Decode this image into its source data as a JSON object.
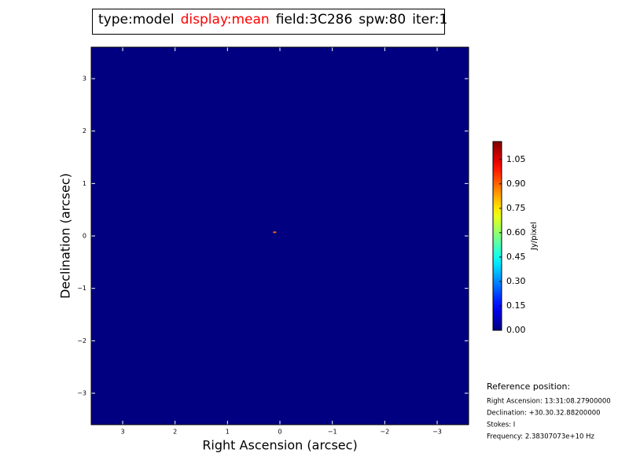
{
  "chart_data": {
    "type": "image",
    "title_parts": [
      {
        "text": "type:model",
        "color": "#000000"
      },
      {
        "text": "display:mean",
        "color": "#ff0000"
      },
      {
        "text": "field:3C286",
        "color": "#000000"
      },
      {
        "text": "spw:80",
        "color": "#000000"
      },
      {
        "text": "iter:1",
        "color": "#000000"
      }
    ],
    "x_label": "Right Ascension (arcsec)",
    "y_label": "Declination (arcsec)",
    "xlim": [
      3.6,
      -3.6
    ],
    "ylim": [
      -3.6,
      3.6
    ],
    "xticks": [
      3,
      2,
      1,
      0,
      {
        "value": -1,
        "label": "−1"
      },
      {
        "value": -2,
        "label": "−2"
      },
      {
        "value": -3,
        "label": "−3"
      }
    ],
    "yticks": [
      {
        "value": -3,
        "label": "−3"
      },
      {
        "value": -2,
        "label": "−2"
      },
      {
        "value": -1,
        "label": "−1"
      },
      0,
      1,
      2,
      3
    ],
    "colormap": "jet",
    "background_value": 0,
    "points": [
      {
        "x": 0.1,
        "y": 0.07,
        "value": 0.9
      }
    ],
    "colorbar": {
      "label": "Jy/pixel",
      "lim": [
        0,
        1.16
      ],
      "ticks": [
        {
          "value": 0,
          "label": "0.00"
        },
        {
          "value": 0.15,
          "label": "0.15"
        },
        {
          "value": 0.3,
          "label": "0.30"
        },
        {
          "value": 0.45,
          "label": "0.45"
        },
        {
          "value": 0.6,
          "label": "0.60"
        },
        {
          "value": 0.75,
          "label": "0.75"
        },
        {
          "value": 0.9,
          "label": "0.90"
        },
        {
          "value": 1.05,
          "label": "1.05"
        }
      ]
    },
    "reference": {
      "title": "Reference position:",
      "lines": [
        "Right Ascension: 13:31:08.27900000",
        "Declination: +30.30.32.88200000",
        "Stokes: I",
        "Frequency: 2.38307073e+10 Hz"
      ]
    }
  }
}
